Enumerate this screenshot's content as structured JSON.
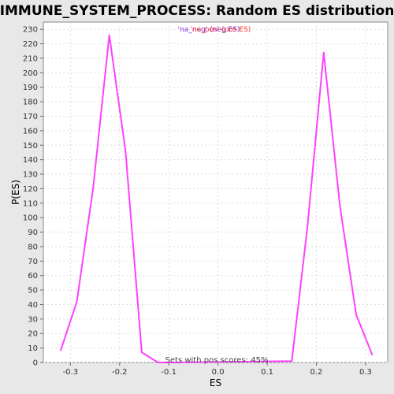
{
  "chart_data": {
    "type": "line",
    "title": "IMMUNE_SYSTEM_PROCESS: Random ES distribution",
    "xlabel": "ES",
    "ylabel": "P(ES)",
    "xlim": [
      -0.355,
      0.345
    ],
    "ylim": [
      0,
      235
    ],
    "xticks": [
      -0.3,
      -0.2,
      -0.1,
      0.0,
      0.1,
      0.2,
      0.3
    ],
    "xtick_labels": [
      "-0.3",
      "-0.2",
      "-0.1",
      "0.0",
      "0.1",
      "0.2",
      "0.3"
    ],
    "yticks": [
      0,
      10,
      20,
      30,
      40,
      50,
      60,
      70,
      80,
      90,
      100,
      110,
      120,
      130,
      140,
      150,
      160,
      170,
      180,
      190,
      200,
      210,
      220,
      230
    ],
    "ytick_labels": [
      "0",
      "10",
      "20",
      "30",
      "40",
      "50",
      "60",
      "70",
      "80",
      "90",
      "100",
      "110",
      "120",
      "130",
      "140",
      "150",
      "160",
      "170",
      "180",
      "190",
      "200",
      "210",
      "220",
      "230"
    ],
    "grid": true,
    "legend": {
      "placement": "top-center",
      "entries": [
        {
          "label": "'na_neg' (neg ES)",
          "color": "#7b2bd6"
        },
        {
          "label": "'na_pos' (pos ES)",
          "color": "#ff3333"
        }
      ]
    },
    "annotation": "Sets with pos scores: 45%",
    "series": [
      {
        "color": "#ff40ff",
        "points": [
          [
            -0.32,
            8
          ],
          [
            -0.287,
            42
          ],
          [
            -0.254,
            120
          ],
          [
            -0.221,
            226
          ],
          [
            -0.188,
            146
          ],
          [
            -0.155,
            7
          ],
          [
            -0.122,
            0
          ],
          [
            -0.089,
            0
          ],
          [
            0.15,
            1
          ],
          [
            0.182,
            94
          ],
          [
            0.215,
            214
          ],
          [
            0.248,
            108
          ],
          [
            0.281,
            33
          ],
          [
            0.314,
            5
          ]
        ]
      }
    ]
  }
}
